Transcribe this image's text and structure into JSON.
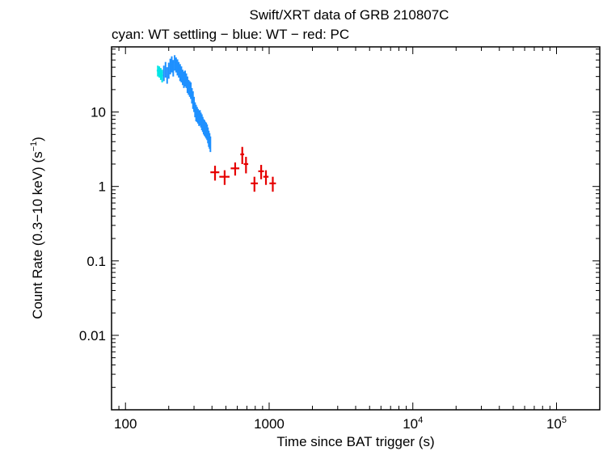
{
  "chart_data": {
    "type": "scatter",
    "title": "Swift/XRT data of GRB 210807C",
    "subtitle": "cyan: WT settling − blue: WT − red: PC",
    "xlabel": "Time since BAT trigger (s)",
    "ylabel_main": "Count Rate (0.3−10 keV) (s",
    "ylabel_sup": "−1",
    "ylabel_close": ")",
    "xscale": "log",
    "yscale": "log",
    "xlim": [
      80,
      200000
    ],
    "ylim": [
      0.001,
      75
    ],
    "xticks": [
      {
        "value": 100,
        "base": "100",
        "sup": ""
      },
      {
        "value": 1000,
        "base": "1000",
        "sup": ""
      },
      {
        "value": 10000,
        "base": "10",
        "sup": "4"
      },
      {
        "value": 100000,
        "base": "10",
        "sup": "5"
      }
    ],
    "yticks": [
      {
        "value": 10,
        "label": "10"
      },
      {
        "value": 1,
        "label": "1"
      },
      {
        "value": 0.1,
        "label": "0.1"
      },
      {
        "value": 0.01,
        "label": "0.01"
      }
    ],
    "series": [
      {
        "name": "WT settling",
        "color": "#00e5e5",
        "points": [
          [
            168,
            36,
            6,
            3
          ],
          [
            172,
            35,
            6,
            3
          ],
          [
            176,
            33,
            6,
            3
          ],
          [
            180,
            31,
            6,
            3
          ]
        ]
      },
      {
        "name": "WT",
        "color": "#1e90ff",
        "points": [
          [
            185,
            34,
            8,
            2
          ],
          [
            190,
            38,
            9,
            2
          ],
          [
            195,
            32,
            8,
            2
          ],
          [
            200,
            37,
            9,
            2
          ],
          [
            205,
            42,
            10,
            2
          ],
          [
            210,
            45,
            11,
            2
          ],
          [
            215,
            40,
            10,
            2
          ],
          [
            220,
            47,
            11,
            2
          ],
          [
            225,
            44,
            10,
            2
          ],
          [
            230,
            41,
            10,
            2
          ],
          [
            235,
            38,
            9,
            2
          ],
          [
            240,
            35,
            9,
            2
          ],
          [
            245,
            33,
            8,
            2
          ],
          [
            250,
            30,
            7,
            2
          ],
          [
            255,
            28,
            7,
            2
          ],
          [
            260,
            29,
            7,
            2
          ],
          [
            265,
            27,
            6,
            2
          ],
          [
            270,
            24,
            6,
            2
          ],
          [
            275,
            22,
            5,
            2
          ],
          [
            280,
            21,
            5,
            2
          ],
          [
            285,
            20,
            5,
            2
          ],
          [
            290,
            17,
            4,
            2
          ],
          [
            295,
            15,
            4,
            2
          ],
          [
            300,
            13,
            3,
            2
          ],
          [
            305,
            11,
            2.5,
            2
          ],
          [
            310,
            10,
            2.5,
            2
          ],
          [
            315,
            9.5,
            2.2,
            2
          ],
          [
            320,
            9,
            2,
            2
          ],
          [
            325,
            8.5,
            2,
            2
          ],
          [
            330,
            8.6,
            2,
            2
          ],
          [
            335,
            8,
            1.8,
            2
          ],
          [
            340,
            7.5,
            1.8,
            2
          ],
          [
            345,
            7,
            1.6,
            2
          ],
          [
            350,
            6.5,
            1.5,
            2
          ],
          [
            355,
            6.3,
            1.5,
            2
          ],
          [
            360,
            6,
            1.4,
            2
          ],
          [
            365,
            5.8,
            1.4,
            2
          ],
          [
            370,
            5.5,
            1.3,
            2
          ],
          [
            375,
            5,
            1.2,
            2
          ],
          [
            380,
            4.5,
            1.1,
            2
          ],
          [
            385,
            4.2,
            1,
            2
          ],
          [
            390,
            3.8,
            0.9,
            2
          ]
        ]
      },
      {
        "name": "PC",
        "color": "#e60000",
        "points": [
          [
            420,
            1.55,
            0.35,
            30
          ],
          [
            490,
            1.35,
            0.3,
            40
          ],
          [
            580,
            1.75,
            0.35,
            40
          ],
          [
            650,
            2.7,
            0.7,
            20
          ],
          [
            690,
            2.0,
            0.5,
            25
          ],
          [
            790,
            1.1,
            0.25,
            45
          ],
          [
            880,
            1.6,
            0.35,
            40
          ],
          [
            950,
            1.35,
            0.3,
            40
          ],
          [
            1060,
            1.1,
            0.25,
            55
          ]
        ]
      }
    ]
  }
}
